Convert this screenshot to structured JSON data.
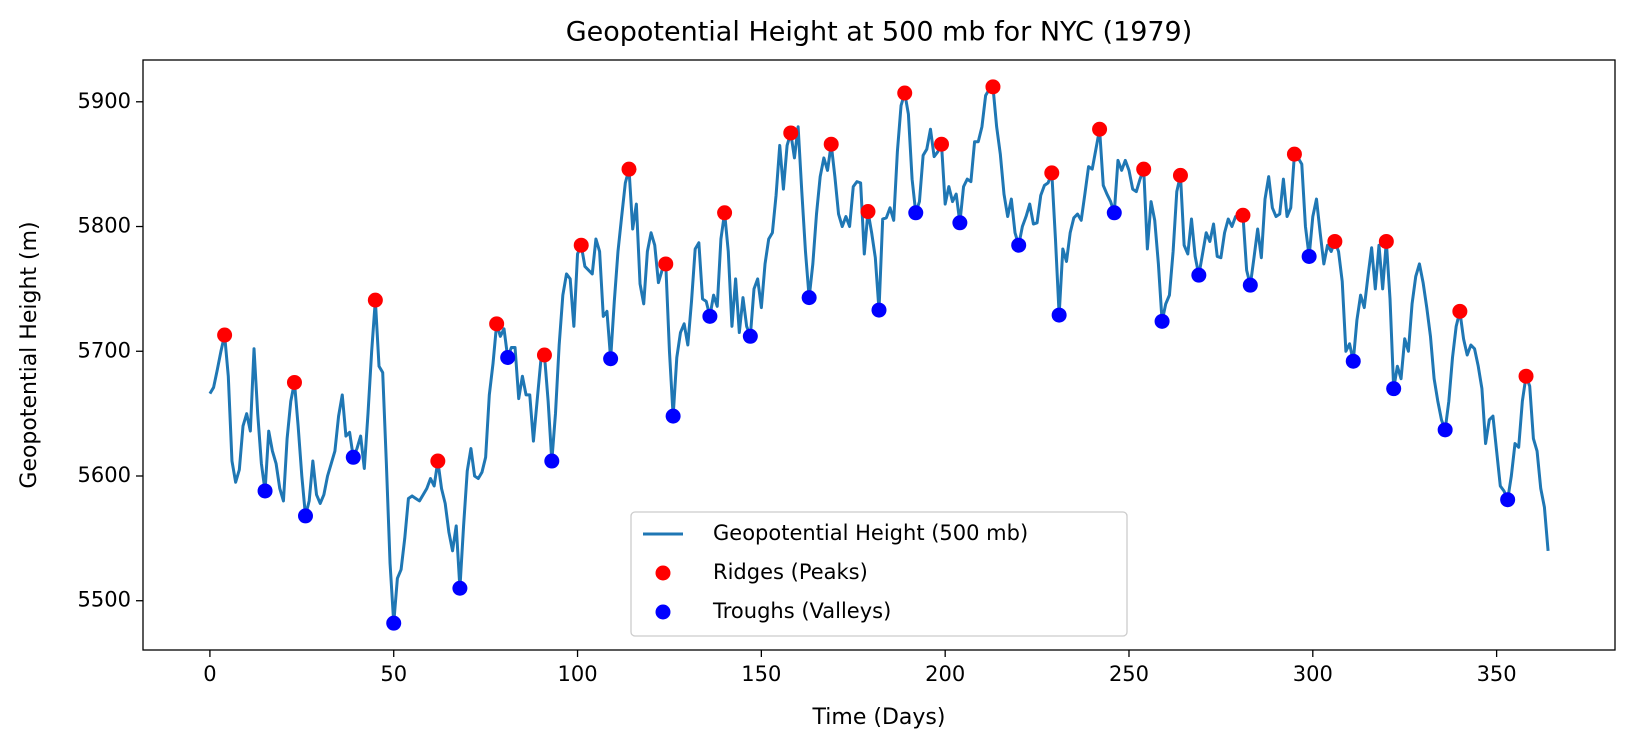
{
  "chart_data": {
    "type": "line",
    "title": "Geopotential Height at 500 mb for NYC (1979)",
    "x_label": "Time (Days)",
    "y_label": "Geopotential Height (m)",
    "xlim": [
      -18.2,
      382.2
    ],
    "ylim": [
      5460.5,
      5933.5
    ],
    "xticks": [
      0,
      50,
      100,
      150,
      200,
      250,
      300,
      350
    ],
    "yticks": [
      5500,
      5600,
      5700,
      5800,
      5900
    ],
    "legend": "lower center",
    "series": [
      {
        "type": "line",
        "name": "Geopotential Height (500 mb)",
        "color": "#1f77b4",
        "x": [
          0,
          1,
          2,
          3,
          4,
          5,
          6,
          7,
          8,
          9,
          10,
          11,
          12,
          13,
          14,
          15,
          16,
          17,
          18,
          19,
          20,
          21,
          22,
          23,
          24,
          25,
          26,
          27,
          28,
          29,
          30,
          31,
          32,
          33,
          34,
          35,
          36,
          37,
          38,
          39,
          40,
          41,
          42,
          43,
          44,
          45,
          46,
          47,
          48,
          49,
          50,
          51,
          52,
          53,
          54,
          55,
          56,
          57,
          58,
          59,
          60,
          61,
          62,
          63,
          64,
          65,
          66,
          67,
          68,
          69,
          70,
          71,
          72,
          73,
          74,
          75,
          76,
          77,
          78,
          79,
          80,
          81,
          82,
          83,
          84,
          85,
          86,
          87,
          88,
          89,
          90,
          91,
          92,
          93,
          94,
          95,
          96,
          97,
          98,
          99,
          100,
          101,
          102,
          103,
          104,
          105,
          106,
          107,
          108,
          109,
          110,
          111,
          112,
          113,
          114,
          115,
          116,
          117,
          118,
          119,
          120,
          121,
          122,
          123,
          124,
          125,
          126,
          127,
          128,
          129,
          130,
          131,
          132,
          133,
          134,
          135,
          136,
          137,
          138,
          139,
          140,
          141,
          142,
          143,
          144,
          145,
          146,
          147,
          148,
          149,
          150,
          151,
          152,
          153,
          154,
          155,
          156,
          157,
          158,
          159,
          160,
          161,
          162,
          163,
          164,
          165,
          166,
          167,
          168,
          169,
          170,
          171,
          172,
          173,
          174,
          175,
          176,
          177,
          178,
          179,
          180,
          181,
          182,
          183,
          184,
          185,
          186,
          187,
          188,
          189,
          190,
          191,
          192,
          193,
          194,
          195,
          196,
          197,
          198,
          199,
          200,
          201,
          202,
          203,
          204,
          205,
          206,
          207,
          208,
          209,
          210,
          211,
          212,
          213,
          214,
          215,
          216,
          217,
          218,
          219,
          220,
          221,
          222,
          223,
          224,
          225,
          226,
          227,
          228,
          229,
          230,
          231,
          232,
          233,
          234,
          235,
          236,
          237,
          238,
          239,
          240,
          241,
          242,
          243,
          244,
          245,
          246,
          247,
          248,
          249,
          250,
          251,
          252,
          253,
          254,
          255,
          256,
          257,
          258,
          259,
          260,
          261,
          262,
          263,
          264,
          265,
          266,
          267,
          268,
          269,
          270,
          271,
          272,
          273,
          274,
          275,
          276,
          277,
          278,
          279,
          280,
          281,
          282,
          283,
          284,
          285,
          286,
          287,
          288,
          289,
          290,
          291,
          292,
          293,
          294,
          295,
          296,
          297,
          298,
          299,
          300,
          301,
          302,
          303,
          304,
          305,
          306,
          307,
          308,
          309,
          310,
          311,
          312,
          313,
          314,
          315,
          316,
          317,
          318,
          319,
          320,
          321,
          322,
          323,
          324,
          325,
          326,
          327,
          328,
          329,
          330,
          331,
          332,
          333,
          334,
          335,
          336,
          337,
          338,
          339,
          340,
          341,
          342,
          343,
          344,
          345,
          346,
          347,
          348,
          349,
          350,
          351,
          352,
          353,
          354,
          355,
          356,
          357,
          358,
          359,
          360,
          361,
          362,
          363,
          364
        ],
        "values": [
          5666,
          5671,
          5685,
          5700,
          5713,
          5680,
          5612,
          5595,
          5605,
          5640,
          5650,
          5636,
          5702,
          5650,
          5610,
          5588,
          5636,
          5620,
          5610,
          5590,
          5580,
          5630,
          5660,
          5675,
          5640,
          5600,
          5568,
          5580,
          5612,
          5585,
          5578,
          5585,
          5600,
          5610,
          5620,
          5648,
          5665,
          5632,
          5635,
          5615,
          5622,
          5632,
          5606,
          5650,
          5700,
          5741,
          5688,
          5683,
          5610,
          5530,
          5482,
          5518,
          5525,
          5550,
          5582,
          5584,
          5582,
          5580,
          5585,
          5590,
          5598,
          5592,
          5612,
          5590,
          5578,
          5555,
          5540,
          5560,
          5510,
          5560,
          5604,
          5622,
          5600,
          5598,
          5603,
          5615,
          5665,
          5690,
          5722,
          5712,
          5718,
          5695,
          5703,
          5703,
          5662,
          5680,
          5665,
          5665,
          5628,
          5660,
          5692,
          5697,
          5660,
          5612,
          5650,
          5705,
          5745,
          5762,
          5758,
          5720,
          5778,
          5785,
          5768,
          5765,
          5762,
          5790,
          5780,
          5728,
          5732,
          5694,
          5740,
          5780,
          5808,
          5835,
          5846,
          5798,
          5818,
          5754,
          5738,
          5780,
          5795,
          5785,
          5755,
          5765,
          5770,
          5700,
          5648,
          5695,
          5715,
          5722,
          5705,
          5740,
          5782,
          5787,
          5742,
          5740,
          5728,
          5745,
          5736,
          5790,
          5811,
          5780,
          5720,
          5758,
          5715,
          5743,
          5720,
          5712,
          5750,
          5758,
          5735,
          5770,
          5790,
          5795,
          5825,
          5865,
          5830,
          5865,
          5875,
          5855,
          5880,
          5828,
          5780,
          5743,
          5770,
          5810,
          5840,
          5855,
          5845,
          5866,
          5840,
          5810,
          5800,
          5808,
          5800,
          5832,
          5836,
          5835,
          5778,
          5812,
          5795,
          5775,
          5733,
          5806,
          5807,
          5815,
          5805,
          5860,
          5897,
          5907,
          5890,
          5838,
          5811,
          5820,
          5857,
          5862,
          5878,
          5856,
          5860,
          5866,
          5818,
          5832,
          5820,
          5826,
          5803,
          5832,
          5838,
          5836,
          5868,
          5868,
          5880,
          5905,
          5910,
          5912,
          5880,
          5858,
          5826,
          5808,
          5822,
          5795,
          5785,
          5800,
          5808,
          5818,
          5802,
          5803,
          5825,
          5833,
          5835,
          5843,
          5790,
          5729,
          5782,
          5772,
          5795,
          5807,
          5810,
          5805,
          5826,
          5848,
          5846,
          5862,
          5878,
          5833,
          5826,
          5820,
          5811,
          5853,
          5845,
          5853,
          5845,
          5830,
          5828,
          5838,
          5846,
          5782,
          5820,
          5805,
          5770,
          5724,
          5738,
          5745,
          5780,
          5828,
          5841,
          5785,
          5778,
          5806,
          5776,
          5761,
          5778,
          5795,
          5788,
          5802,
          5776,
          5775,
          5795,
          5806,
          5800,
          5808,
          5808,
          5809,
          5765,
          5753,
          5775,
          5798,
          5775,
          5822,
          5840,
          5815,
          5808,
          5810,
          5838,
          5808,
          5815,
          5858,
          5855,
          5850,
          5800,
          5776,
          5808,
          5822,
          5795,
          5770,
          5785,
          5780,
          5788,
          5780,
          5756,
          5700,
          5706,
          5692,
          5725,
          5745,
          5735,
          5760,
          5783,
          5750,
          5785,
          5750,
          5788,
          5742,
          5670,
          5688,
          5678,
          5710,
          5700,
          5738,
          5760,
          5770,
          5755,
          5735,
          5712,
          5678,
          5660,
          5645,
          5637,
          5660,
          5695,
          5720,
          5732,
          5710,
          5697,
          5705,
          5702,
          5688,
          5670,
          5626,
          5645,
          5648,
          5620,
          5592,
          5588,
          5581,
          5600,
          5626,
          5623,
          5660,
          5680,
          5672,
          5630,
          5620,
          5590,
          5575,
          5540
        ]
      },
      {
        "type": "scatter",
        "name": "Ridges (Peaks)",
        "color": "#ff0000",
        "x": [
          4,
          23,
          45,
          62,
          78,
          91,
          101,
          114,
          124,
          140,
          158,
          169,
          179,
          189,
          199,
          213,
          229,
          242,
          254,
          264,
          281,
          295,
          306,
          320,
          340,
          358
        ],
        "values": [
          5713,
          5675,
          5741,
          5612,
          5722,
          5697,
          5785,
          5846,
          5770,
          5811,
          5875,
          5866,
          5812,
          5907,
          5866,
          5912,
          5843,
          5878,
          5846,
          5841,
          5809,
          5858,
          5788,
          5788,
          5732,
          5680
        ]
      },
      {
        "type": "scatter",
        "name": "Troughs (Valleys)",
        "color": "#0000ff",
        "x": [
          15,
          26,
          39,
          50,
          68,
          81,
          93,
          109,
          126,
          136,
          147,
          163,
          182,
          192,
          204,
          220,
          231,
          246,
          259,
          269,
          283,
          299,
          311,
          322,
          336,
          353
        ],
        "values": [
          5588,
          5568,
          5615,
          5482,
          5510,
          5695,
          5612,
          5694,
          5648,
          5728,
          5712,
          5743,
          5733,
          5811,
          5803,
          5785,
          5729,
          5811,
          5724,
          5761,
          5753,
          5776,
          5692,
          5670,
          5637,
          5581
        ]
      }
    ]
  }
}
